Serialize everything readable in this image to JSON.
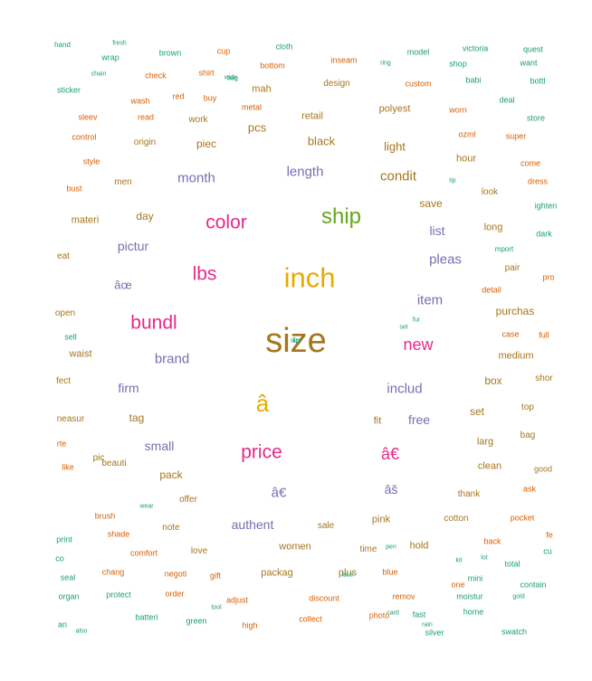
{
  "palette": {
    "teal": "#1b9e77",
    "orange": "#d95f02",
    "slate": "#7570b3",
    "magenta": "#e7298a",
    "green": "#66a61e",
    "gold": "#e6ab02",
    "brown": "#a6761d"
  },
  "words": [
    {
      "text": "size",
      "weight": 1.0,
      "color": "brown"
    },
    {
      "text": "inch",
      "weight": 0.8,
      "color": "gold"
    },
    {
      "text": "â",
      "weight": 0.65,
      "color": "gold"
    },
    {
      "text": "ship",
      "weight": 0.6,
      "color": "green"
    },
    {
      "text": "color",
      "weight": 0.5,
      "color": "magenta"
    },
    {
      "text": "bundl",
      "weight": 0.5,
      "color": "magenta"
    },
    {
      "text": "price",
      "weight": 0.5,
      "color": "magenta"
    },
    {
      "text": "lbs",
      "weight": 0.5,
      "color": "magenta"
    },
    {
      "text": "new",
      "weight": 0.42,
      "color": "magenta"
    },
    {
      "text": "â€",
      "weight": 0.42,
      "color": "magenta"
    },
    {
      "text": "length",
      "weight": 0.32,
      "color": "slate"
    },
    {
      "text": "month",
      "weight": 0.32,
      "color": "slate"
    },
    {
      "text": "brand",
      "weight": 0.32,
      "color": "slate"
    },
    {
      "text": "includ",
      "weight": 0.32,
      "color": "slate"
    },
    {
      "text": "item",
      "weight": 0.32,
      "color": "slate"
    },
    {
      "text": "pleas",
      "weight": 0.3,
      "color": "slate"
    },
    {
      "text": "pictur",
      "weight": 0.28,
      "color": "slate"
    },
    {
      "text": "âœ",
      "weight": 0.26,
      "color": "slate"
    },
    {
      "text": "firm",
      "weight": 0.28,
      "color": "slate"
    },
    {
      "text": "list",
      "weight": 0.28,
      "color": "slate"
    },
    {
      "text": "free",
      "weight": 0.28,
      "color": "slate"
    },
    {
      "text": "small",
      "weight": 0.28,
      "color": "slate"
    },
    {
      "text": "authent",
      "weight": 0.28,
      "color": "slate"
    },
    {
      "text": "â€",
      "weight": 0.3,
      "color": "slate"
    },
    {
      "text": "âš",
      "weight": 0.28,
      "color": "slate"
    },
    {
      "text": "condit",
      "weight": 0.3,
      "color": "brown"
    },
    {
      "text": "black",
      "weight": 0.25,
      "color": "brown"
    },
    {
      "text": "light",
      "weight": 0.25,
      "color": "brown"
    },
    {
      "text": "pcs",
      "weight": 0.25,
      "color": "brown"
    },
    {
      "text": "piec",
      "weight": 0.22,
      "color": "brown"
    },
    {
      "text": "day",
      "weight": 0.22,
      "color": "brown"
    },
    {
      "text": "save",
      "weight": 0.22,
      "color": "brown"
    },
    {
      "text": "purchas",
      "weight": 0.22,
      "color": "brown"
    },
    {
      "text": "tag",
      "weight": 0.22,
      "color": "brown"
    },
    {
      "text": "set",
      "weight": 0.22,
      "color": "brown"
    },
    {
      "text": "box",
      "weight": 0.22,
      "color": "brown"
    },
    {
      "text": "medium",
      "weight": 0.2,
      "color": "brown"
    },
    {
      "text": "pack",
      "weight": 0.22,
      "color": "brown"
    },
    {
      "text": "women",
      "weight": 0.2,
      "color": "brown"
    },
    {
      "text": "pink",
      "weight": 0.2,
      "color": "brown"
    },
    {
      "text": "hold",
      "weight": 0.18,
      "color": "brown"
    },
    {
      "text": "plus",
      "weight": 0.18,
      "color": "brown"
    },
    {
      "text": "packag",
      "weight": 0.18,
      "color": "brown"
    },
    {
      "text": "long",
      "weight": 0.18,
      "color": "brown"
    },
    {
      "text": "hour",
      "weight": 0.18,
      "color": "brown"
    },
    {
      "text": "polyest",
      "weight": 0.18,
      "color": "brown"
    },
    {
      "text": "retail",
      "weight": 0.18,
      "color": "brown"
    },
    {
      "text": "mah",
      "weight": 0.18,
      "color": "brown"
    },
    {
      "text": "materi",
      "weight": 0.18,
      "color": "brown"
    },
    {
      "text": "waist",
      "weight": 0.18,
      "color": "brown"
    },
    {
      "text": "clean",
      "weight": 0.18,
      "color": "brown"
    },
    {
      "text": "larg",
      "weight": 0.18,
      "color": "brown"
    },
    {
      "text": "fit",
      "weight": 0.18,
      "color": "brown"
    },
    {
      "text": "thank",
      "weight": 0.16,
      "color": "brown"
    },
    {
      "text": "cotton",
      "weight": 0.16,
      "color": "brown"
    },
    {
      "text": "time",
      "weight": 0.16,
      "color": "brown"
    },
    {
      "text": "sale",
      "weight": 0.16,
      "color": "brown"
    },
    {
      "text": "love",
      "weight": 0.16,
      "color": "brown"
    },
    {
      "text": "note",
      "weight": 0.16,
      "color": "brown"
    },
    {
      "text": "offer",
      "weight": 0.16,
      "color": "brown"
    },
    {
      "text": "beauti",
      "weight": 0.16,
      "color": "brown"
    },
    {
      "text": "pic",
      "weight": 0.16,
      "color": "brown"
    },
    {
      "text": "men",
      "weight": 0.16,
      "color": "brown"
    },
    {
      "text": "origin",
      "weight": 0.16,
      "color": "brown"
    },
    {
      "text": "work",
      "weight": 0.16,
      "color": "brown"
    },
    {
      "text": "design",
      "weight": 0.16,
      "color": "brown"
    },
    {
      "text": "pair",
      "weight": 0.16,
      "color": "brown"
    },
    {
      "text": "look",
      "weight": 0.16,
      "color": "brown"
    },
    {
      "text": "top",
      "weight": 0.16,
      "color": "brown"
    },
    {
      "text": "bag",
      "weight": 0.16,
      "color": "brown"
    },
    {
      "text": "neasur",
      "weight": 0.16,
      "color": "brown"
    },
    {
      "text": "open",
      "weight": 0.14,
      "color": "brown"
    },
    {
      "text": "fect",
      "weight": 0.14,
      "color": "brown"
    },
    {
      "text": "eat",
      "weight": 0.14,
      "color": "brown"
    },
    {
      "text": "shor",
      "weight": 0.14,
      "color": "brown"
    },
    {
      "text": "good",
      "weight": 0.12,
      "color": "brown"
    },
    {
      "text": "pocket",
      "weight": 0.12,
      "color": "orange"
    },
    {
      "text": "back",
      "weight": 0.12,
      "color": "orange"
    },
    {
      "text": "case",
      "weight": 0.12,
      "color": "orange"
    },
    {
      "text": "full",
      "weight": 0.12,
      "color": "orange"
    },
    {
      "text": "detail",
      "weight": 0.12,
      "color": "orange"
    },
    {
      "text": "ask",
      "weight": 0.12,
      "color": "orange"
    },
    {
      "text": "dress",
      "weight": 0.12,
      "color": "orange"
    },
    {
      "text": "come",
      "weight": 0.12,
      "color": "orange"
    },
    {
      "text": "super",
      "weight": 0.12,
      "color": "orange"
    },
    {
      "text": "worn",
      "weight": 0.12,
      "color": "orange"
    },
    {
      "text": "ozml",
      "weight": 0.12,
      "color": "orange"
    },
    {
      "text": "custom",
      "weight": 0.12,
      "color": "orange"
    },
    {
      "text": "inseam",
      "weight": 0.12,
      "color": "orange"
    },
    {
      "text": "bottom",
      "weight": 0.12,
      "color": "orange"
    },
    {
      "text": "shirt",
      "weight": 0.12,
      "color": "orange"
    },
    {
      "text": "check",
      "weight": 0.12,
      "color": "orange"
    },
    {
      "text": "cup",
      "weight": 0.12,
      "color": "orange"
    },
    {
      "text": "buy",
      "weight": 0.12,
      "color": "orange"
    },
    {
      "text": "red",
      "weight": 0.12,
      "color": "orange"
    },
    {
      "text": "read",
      "weight": 0.12,
      "color": "orange"
    },
    {
      "text": "metal",
      "weight": 0.12,
      "color": "orange"
    },
    {
      "text": "wash",
      "weight": 0.12,
      "color": "orange"
    },
    {
      "text": "sleev",
      "weight": 0.12,
      "color": "orange"
    },
    {
      "text": "control",
      "weight": 0.12,
      "color": "orange"
    },
    {
      "text": "style",
      "weight": 0.12,
      "color": "orange"
    },
    {
      "text": "bust",
      "weight": 0.12,
      "color": "orange"
    },
    {
      "text": "like",
      "weight": 0.12,
      "color": "orange"
    },
    {
      "text": "rte",
      "weight": 0.12,
      "color": "orange"
    },
    {
      "text": "brush",
      "weight": 0.12,
      "color": "orange"
    },
    {
      "text": "shade",
      "weight": 0.12,
      "color": "orange"
    },
    {
      "text": "comfort",
      "weight": 0.12,
      "color": "orange"
    },
    {
      "text": "chang",
      "weight": 0.12,
      "color": "orange"
    },
    {
      "text": "negoti",
      "weight": 0.12,
      "color": "orange"
    },
    {
      "text": "gift",
      "weight": 0.12,
      "color": "orange"
    },
    {
      "text": "order",
      "weight": 0.12,
      "color": "orange"
    },
    {
      "text": "adjust",
      "weight": 0.12,
      "color": "orange"
    },
    {
      "text": "high",
      "weight": 0.12,
      "color": "orange"
    },
    {
      "text": "collect",
      "weight": 0.12,
      "color": "orange"
    },
    {
      "text": "discount",
      "weight": 0.12,
      "color": "orange"
    },
    {
      "text": "photo",
      "weight": 0.12,
      "color": "orange"
    },
    {
      "text": "remov",
      "weight": 0.12,
      "color": "orange"
    },
    {
      "text": "blue",
      "weight": 0.12,
      "color": "orange"
    },
    {
      "text": "one",
      "weight": 0.12,
      "color": "orange"
    },
    {
      "text": "batteri",
      "weight": 0.1,
      "color": "teal"
    },
    {
      "text": "green",
      "weight": 0.1,
      "color": "teal"
    },
    {
      "text": "fast",
      "weight": 0.1,
      "color": "teal"
    },
    {
      "text": "silver",
      "weight": 0.1,
      "color": "teal"
    },
    {
      "text": "home",
      "weight": 0.1,
      "color": "teal"
    },
    {
      "text": "moistur",
      "weight": 0.1,
      "color": "teal"
    },
    {
      "text": "mini",
      "weight": 0.1,
      "color": "teal"
    },
    {
      "text": "total",
      "weight": 0.1,
      "color": "teal"
    },
    {
      "text": "contain",
      "weight": 0.1,
      "color": "teal"
    },
    {
      "text": "swatch",
      "weight": 0.1,
      "color": "teal"
    },
    {
      "text": "protect",
      "weight": 0.1,
      "color": "teal"
    },
    {
      "text": "organ",
      "weight": 0.1,
      "color": "teal"
    },
    {
      "text": "seal",
      "weight": 0.1,
      "color": "teal"
    },
    {
      "text": "print",
      "weight": 0.1,
      "color": "teal"
    },
    {
      "text": "sell",
      "weight": 0.1,
      "color": "teal"
    },
    {
      "text": "sticker",
      "weight": 0.1,
      "color": "teal"
    },
    {
      "text": "wrap",
      "weight": 0.1,
      "color": "teal"
    },
    {
      "text": "brown",
      "weight": 0.1,
      "color": "teal"
    },
    {
      "text": "cloth",
      "weight": 0.1,
      "color": "teal"
    },
    {
      "text": "model",
      "weight": 0.1,
      "color": "teal"
    },
    {
      "text": "shop",
      "weight": 0.1,
      "color": "teal"
    },
    {
      "text": "babi",
      "weight": 0.1,
      "color": "teal"
    },
    {
      "text": "deal",
      "weight": 0.1,
      "color": "teal"
    },
    {
      "text": "store",
      "weight": 0.1,
      "color": "teal"
    },
    {
      "text": "bottl",
      "weight": 0.1,
      "color": "teal"
    },
    {
      "text": "quest",
      "weight": 0.1,
      "color": "teal"
    },
    {
      "text": "want",
      "weight": 0.1,
      "color": "teal"
    },
    {
      "text": "victoria",
      "weight": 0.1,
      "color": "teal"
    },
    {
      "text": "dark",
      "weight": 0.1,
      "color": "teal"
    },
    {
      "text": "ighten",
      "weight": 0.1,
      "color": "teal"
    },
    {
      "text": "pro",
      "weight": 0.1,
      "color": "orange"
    },
    {
      "text": "fe",
      "weight": 0.1,
      "color": "orange"
    },
    {
      "text": "cu",
      "weight": 0.1,
      "color": "teal"
    },
    {
      "text": "co",
      "weight": 0.1,
      "color": "teal"
    },
    {
      "text": "an",
      "weight": 0.1,
      "color": "teal"
    },
    {
      "text": "mport",
      "weight": 0.08,
      "color": "teal"
    },
    {
      "text": "hand",
      "weight": 0.08,
      "color": "teal"
    },
    {
      "text": "fresh",
      "weight": 0.06,
      "color": "teal"
    },
    {
      "text": "chain",
      "weight": 0.06,
      "color": "teal"
    },
    {
      "text": "wide",
      "weight": 0.06,
      "color": "teal"
    },
    {
      "text": "tip",
      "weight": 0.06,
      "color": "teal"
    },
    {
      "text": "ring",
      "weight": 0.06,
      "color": "teal"
    },
    {
      "text": "rain",
      "weight": 0.06,
      "color": "teal"
    },
    {
      "text": "pen",
      "weight": 0.06,
      "color": "teal"
    },
    {
      "text": "set",
      "weight": 0.06,
      "color": "teal"
    },
    {
      "text": "fur",
      "weight": 0.06,
      "color": "teal"
    },
    {
      "text": "kit",
      "weight": 0.06,
      "color": "teal"
    },
    {
      "text": "lot",
      "weight": 0.06,
      "color": "teal"
    },
    {
      "text": "gold",
      "weight": 0.06,
      "color": "teal"
    },
    {
      "text": "card",
      "weight": 0.06,
      "color": "teal"
    },
    {
      "text": "wear",
      "weight": 0.06,
      "color": "teal"
    },
    {
      "text": "also",
      "weight": 0.06,
      "color": "teal"
    },
    {
      "text": "tool",
      "weight": 0.06,
      "color": "teal"
    },
    {
      "text": "lace",
      "weight": 0.06,
      "color": "teal"
    },
    {
      "text": "bag",
      "weight": 0.06,
      "color": "teal"
    },
    {
      "text": "size",
      "weight": 0.06,
      "color": "teal"
    },
    {
      "text": "lip",
      "weight": 0.06,
      "color": "teal"
    }
  ]
}
